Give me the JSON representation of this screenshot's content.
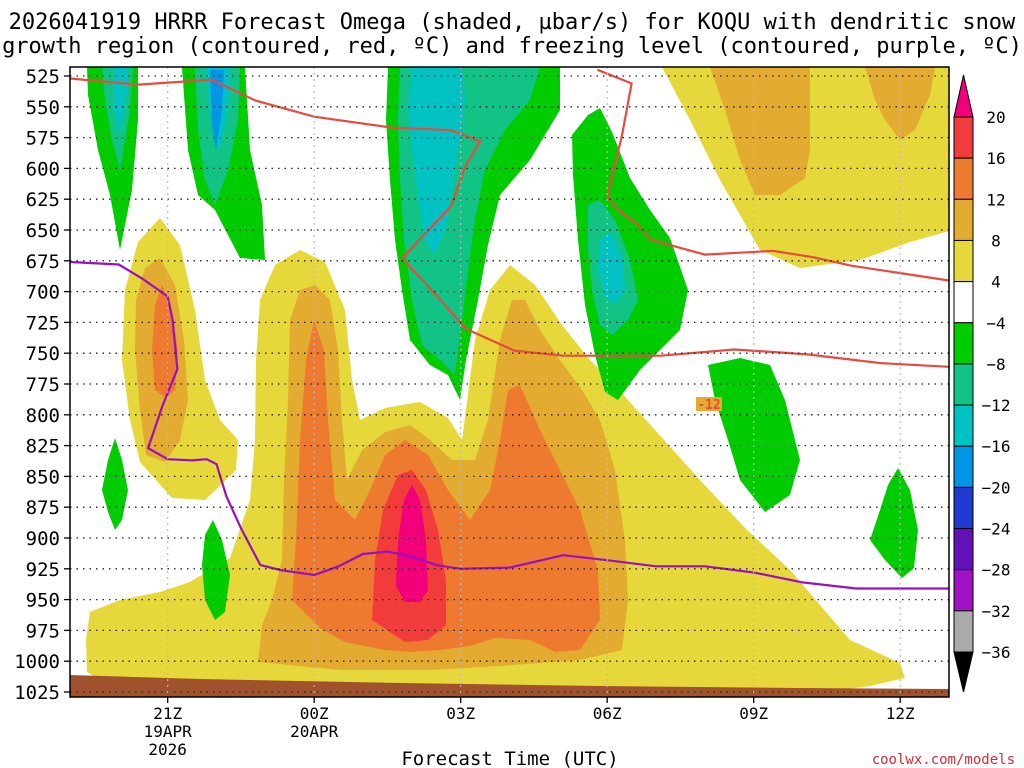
{
  "chart_data": {
    "type": "heatmap",
    "title_line1": "2026041919 HRRR Forecast Omega (shaded, µbar/s) for KOQU with dendritic snow",
    "title_line2": "growth region (contoured, red, ºC) and freezing level (contoured, purple, ºC)",
    "xlabel": "Forecast Time (UTC)",
    "credit": "coolwx.com/models",
    "y_ticks": [
      525,
      550,
      575,
      600,
      625,
      650,
      675,
      700,
      725,
      750,
      775,
      800,
      825,
      850,
      875,
      900,
      925,
      950,
      975,
      1000,
      1025
    ],
    "y_range_hpa": [
      1025,
      520
    ],
    "x_range_hours_from_19z": [
      0,
      18
    ],
    "x_ticks": [
      {
        "hour": 2,
        "label": "21Z",
        "sub1": "19APR",
        "sub2": "2026"
      },
      {
        "hour": 5,
        "label": "00Z",
        "sub1": "20APR",
        "sub2": ""
      },
      {
        "hour": 8,
        "label": "03Z",
        "sub1": "",
        "sub2": ""
      },
      {
        "hour": 11,
        "label": "06Z",
        "sub1": "",
        "sub2": ""
      },
      {
        "hour": 14,
        "label": "09Z",
        "sub1": "",
        "sub2": ""
      },
      {
        "hour": 17,
        "label": "12Z",
        "sub1": "",
        "sub2": ""
      }
    ],
    "colorbar": {
      "labels": [
        "20",
        "16",
        "12",
        "8",
        "4",
        "−4",
        "−8",
        "−12",
        "−16",
        "−20",
        "−24",
        "−28",
        "−32",
        "−36"
      ],
      "colors": [
        "#f2007a",
        "#f23c3c",
        "#ee7a30",
        "#e3ab30",
        "#e6d83a",
        "#ffffff",
        "#00cc00",
        "#11c486",
        "#00c2c2",
        "#0096e6",
        "#1e3ad2",
        "#6410b8",
        "#a012c4",
        "#aaaaaa",
        "#000000"
      ]
    },
    "dgz_line_label": "-12",
    "contours": {
      "dgz_top_-12C": [
        [
          0,
          527
        ],
        [
          1.4,
          532
        ],
        [
          2.9,
          528
        ],
        [
          3.8,
          545
        ],
        [
          5,
          558
        ],
        [
          6.6,
          567
        ],
        [
          7.8,
          569
        ],
        [
          8.4,
          578
        ],
        [
          8.1,
          598
        ],
        [
          7.8,
          631
        ],
        [
          7.2,
          656
        ],
        [
          6.8,
          673
        ],
        [
          7.5,
          703
        ],
        [
          8.1,
          730
        ],
        [
          9.1,
          748
        ],
        [
          10.1,
          752
        ],
        [
          12.1,
          752
        ],
        [
          13.6,
          747
        ],
        [
          14.4,
          749
        ],
        [
          15.1,
          751
        ],
        [
          16.6,
          758
        ],
        [
          18,
          761
        ]
      ],
      "dgz_side_-12C": [
        [
          10.8,
          520
        ],
        [
          11.5,
          531
        ],
        [
          11.3,
          574
        ],
        [
          11,
          622
        ],
        [
          11.2,
          633
        ],
        [
          11.6,
          645
        ],
        [
          11.9,
          658
        ],
        [
          13,
          670
        ],
        [
          14.4,
          667
        ],
        [
          15.2,
          672
        ],
        [
          16,
          679
        ],
        [
          17,
          685
        ],
        [
          18,
          691
        ]
      ],
      "freezing_level_0C": [
        [
          0,
          676
        ],
        [
          1,
          678
        ],
        [
          1.5,
          690
        ],
        [
          2,
          704
        ],
        [
          2.1,
          723
        ],
        [
          2.2,
          763
        ],
        [
          1.9,
          792
        ],
        [
          1.6,
          827
        ],
        [
          2,
          836
        ],
        [
          2.5,
          837
        ],
        [
          2.8,
          836
        ],
        [
          3,
          840
        ],
        [
          3.2,
          866
        ],
        [
          3.5,
          892
        ],
        [
          3.9,
          922
        ],
        [
          4.3,
          926
        ],
        [
          5,
          930
        ],
        [
          5.5,
          923
        ],
        [
          6,
          913
        ],
        [
          6.5,
          911
        ],
        [
          7,
          915
        ],
        [
          7.5,
          922
        ],
        [
          8,
          925
        ],
        [
          9,
          924
        ],
        [
          10.1,
          914
        ],
        [
          11,
          918
        ],
        [
          12,
          923
        ],
        [
          13,
          923
        ],
        [
          14,
          928
        ],
        [
          15,
          936
        ],
        [
          16.1,
          941
        ],
        [
          17,
          941
        ],
        [
          18,
          941
        ]
      ]
    }
  }
}
